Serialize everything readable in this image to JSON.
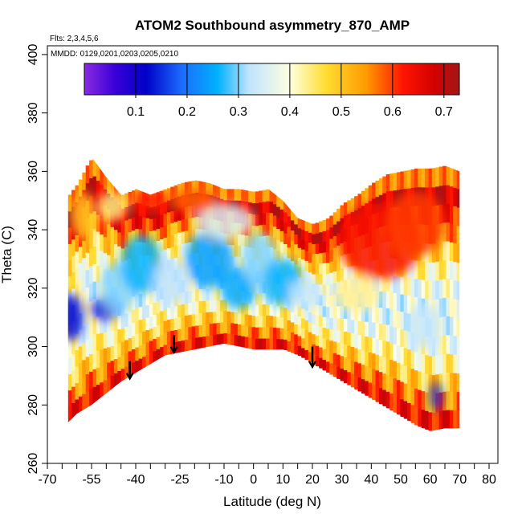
{
  "chart_data": {
    "type": "heatmap",
    "title": "ATOM2 Southbound asymmetry_870_AMP",
    "flights_note": "Flts: 2,3,4,5,6",
    "dates_note": "MMDD: 0129,0201,0203,0205,0210",
    "xlabel": "Latitude (deg N)",
    "ylabel": "Theta (C)",
    "xlim": [
      -70,
      83
    ],
    "ylim": [
      260,
      403
    ],
    "x_ticks": [
      -70,
      -55,
      -40,
      -25,
      -10,
      0,
      10,
      20,
      30,
      40,
      50,
      60,
      70,
      80
    ],
    "x_tick_labels": [
      "-70",
      "-55",
      "-40",
      "-25",
      "-10",
      "0",
      "10",
      "20",
      "30",
      "40",
      "50",
      "60",
      "70",
      "80"
    ],
    "x_minor_ticks": [
      -65,
      -60,
      -50,
      -45,
      -35,
      -30,
      -20,
      -15,
      -5,
      5,
      15,
      25,
      35,
      45,
      55,
      65,
      75
    ],
    "y_ticks": [
      260,
      280,
      300,
      320,
      340,
      360,
      380,
      400
    ],
    "y_tick_labels": [
      "260",
      "280",
      "300",
      "320",
      "340",
      "360",
      "380",
      "400"
    ],
    "colorbar": {
      "range": [
        0.0,
        0.73
      ],
      "ticks": [
        0.1,
        0.2,
        0.3,
        0.4,
        0.5,
        0.6,
        0.7
      ],
      "tick_labels": [
        "0.1",
        "0.2",
        "0.3",
        "0.4",
        "0.5",
        "0.6",
        "0.7"
      ],
      "color_stops": [
        [
          0.0,
          "#8a2be2"
        ],
        [
          0.06,
          "#3a00d8"
        ],
        [
          0.12,
          "#0000c8"
        ],
        [
          0.19,
          "#1a6cff"
        ],
        [
          0.26,
          "#00b2ff"
        ],
        [
          0.32,
          "#bfe3ff"
        ],
        [
          0.4,
          "#ffffe0"
        ],
        [
          0.47,
          "#ffdd33"
        ],
        [
          0.55,
          "#ff9900"
        ],
        [
          0.62,
          "#ff1500"
        ],
        [
          0.68,
          "#d40000"
        ],
        [
          0.73,
          "#a01818"
        ]
      ]
    },
    "coverage_lower": [
      [
        -63,
        274
      ],
      [
        -60,
        277
      ],
      [
        -55,
        280
      ],
      [
        -50,
        284
      ],
      [
        -45,
        288
      ],
      [
        -40,
        291
      ],
      [
        -35,
        294
      ],
      [
        -30,
        297
      ],
      [
        -25,
        298
      ],
      [
        -20,
        299
      ],
      [
        -15,
        300
      ],
      [
        -10,
        301
      ],
      [
        -5,
        300
      ],
      [
        0,
        299
      ],
      [
        5,
        299
      ],
      [
        10,
        299
      ],
      [
        15,
        297
      ],
      [
        20,
        294
      ],
      [
        25,
        291
      ],
      [
        30,
        288
      ],
      [
        35,
        285
      ],
      [
        40,
        282
      ],
      [
        45,
        279
      ],
      [
        50,
        276
      ],
      [
        55,
        273
      ],
      [
        60,
        271
      ],
      [
        65,
        272
      ],
      [
        70,
        272
      ]
    ],
    "coverage_upper": [
      [
        -63,
        352
      ],
      [
        -60,
        356
      ],
      [
        -57,
        362
      ],
      [
        -55,
        365
      ],
      [
        -50,
        358
      ],
      [
        -45,
        352
      ],
      [
        -40,
        354
      ],
      [
        -35,
        352
      ],
      [
        -30,
        354
      ],
      [
        -25,
        356
      ],
      [
        -20,
        357
      ],
      [
        -15,
        356
      ],
      [
        -10,
        354
      ],
      [
        -5,
        354
      ],
      [
        0,
        353
      ],
      [
        5,
        354
      ],
      [
        10,
        350
      ],
      [
        15,
        344
      ],
      [
        20,
        342
      ],
      [
        25,
        344
      ],
      [
        30,
        349
      ],
      [
        35,
        352
      ],
      [
        40,
        356
      ],
      [
        45,
        359
      ],
      [
        50,
        360
      ],
      [
        55,
        361
      ],
      [
        60,
        361
      ],
      [
        65,
        362
      ],
      [
        70,
        360
      ]
    ],
    "field_regions": [
      {
        "center": [
          -62,
          310
        ],
        "rx": 4,
        "ry": 8,
        "value": 0.12
      },
      {
        "center": [
          -50,
          313
        ],
        "rx": 5,
        "ry": 4,
        "value": 0.09
      },
      {
        "center": [
          -46,
          320
        ],
        "rx": 6,
        "ry": 9,
        "value": 0.3
      },
      {
        "center": [
          -38,
          328
        ],
        "rx": 7,
        "ry": 10,
        "value": 0.26
      },
      {
        "center": [
          -28,
          322
        ],
        "rx": 6,
        "ry": 8,
        "value": 0.32
      },
      {
        "center": [
          -15,
          330
        ],
        "rx": 8,
        "ry": 10,
        "value": 0.24
      },
      {
        "center": [
          -5,
          320
        ],
        "rx": 6,
        "ry": 7,
        "value": 0.25
      },
      {
        "center": [
          2,
          330
        ],
        "rx": 6,
        "ry": 9,
        "value": 0.3
      },
      {
        "center": [
          10,
          322
        ],
        "rx": 7,
        "ry": 8,
        "value": 0.26
      },
      {
        "center": [
          -10,
          343
        ],
        "rx": 10,
        "ry": 6,
        "value": 0.35
      },
      {
        "center": [
          18,
          318
        ],
        "rx": 6,
        "ry": 5,
        "value": 0.33
      },
      {
        "center": [
          43,
          336
        ],
        "rx": 14,
        "ry": 13,
        "value": 0.63
      },
      {
        "center": [
          55,
          342
        ],
        "rx": 10,
        "ry": 11,
        "value": 0.6
      },
      {
        "center": [
          35,
          318
        ],
        "rx": 8,
        "ry": 6,
        "value": 0.43
      },
      {
        "center": [
          58,
          307
        ],
        "rx": 6,
        "ry": 8,
        "value": 0.33
      },
      {
        "center": [
          62,
          283
        ],
        "rx": 2,
        "ry": 5,
        "value": 0.15
      },
      {
        "center": [
          -48,
          348
        ],
        "rx": 5,
        "ry": 5,
        "value": 0.44
      },
      {
        "center": [
          -58,
          345
        ],
        "rx": 4,
        "ry": 8,
        "value": 0.5
      },
      {
        "center": [
          -20,
          350
        ],
        "rx": 8,
        "ry": 4,
        "value": 0.58
      },
      {
        "center": [
          -35,
          350
        ],
        "rx": 6,
        "ry": 4,
        "value": 0.62
      }
    ],
    "markers": [
      {
        "x": -42,
        "y_top": 295,
        "y_bottom": 289
      },
      {
        "x": -27,
        "y_top": 304,
        "y_bottom": 298
      },
      {
        "x": 20,
        "y_top": 300,
        "y_bottom": 293
      }
    ]
  }
}
